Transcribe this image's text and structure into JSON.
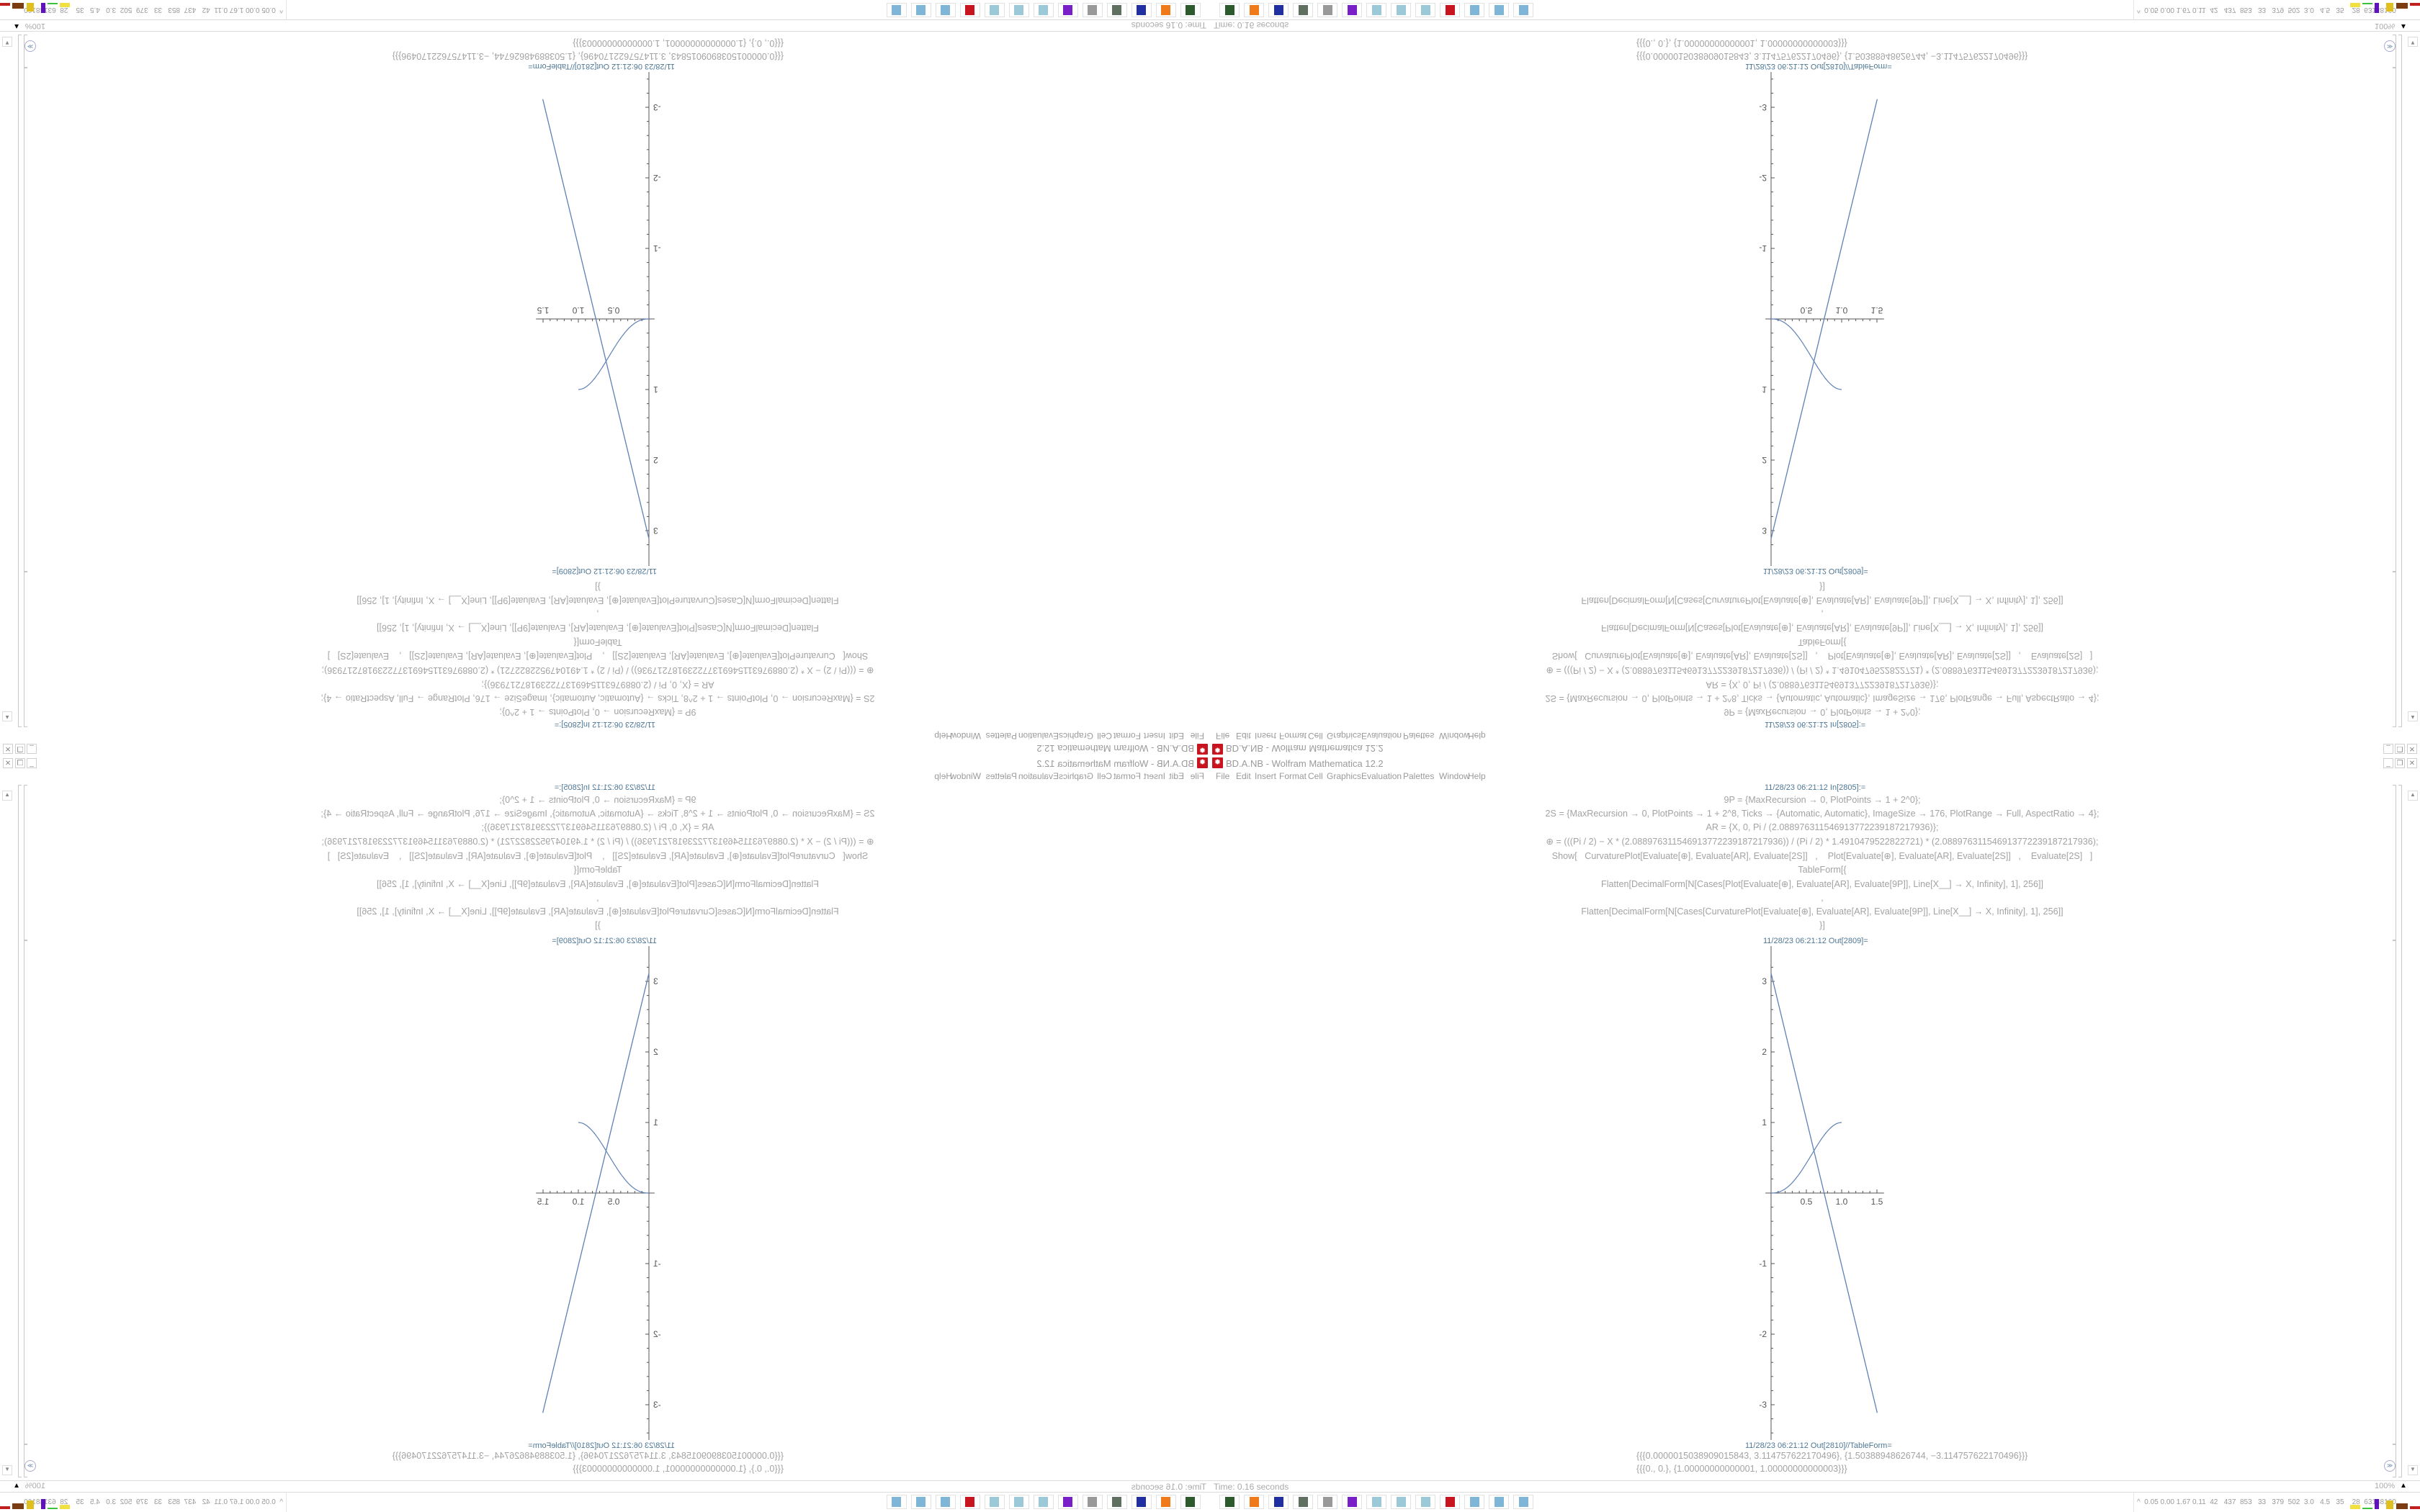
{
  "window": {
    "title": "BD.A.NB - Wolfram Mathematica 12.2",
    "app_icon": "mathematica-gear-icon",
    "controls": [
      "minimize",
      "restore",
      "close"
    ]
  },
  "menu": [
    "File",
    "Edit",
    "Insert",
    "Format",
    "Cell",
    "Graphics",
    "Evaluation",
    "Palettes",
    "Window",
    "Help"
  ],
  "input_cell": {
    "label": "11/28/23 06:21:12 In[2805]:=",
    "lines": [
      "9P = {MaxRecursion → 0, PlotPoints → 1 + 2^0};",
      "2S = {MaxRecursion → 0, PlotPoints → 1 + 2^8, Ticks → {Automatic, Automatic}, ImageSize → 176, PlotRange → Full, AspectRatio → 4};",
      "AR = {X, 0, Pi / (2.088976311546913772239187217936)};",
      "⊕ = (((Pi / 2) − X * (2.088976311546913772239187217936)) / (Pi / 2) * 1.4910479522822721) * (2.088976311546913772239187217936);",
      "Show[   CurvaturePlot[Evaluate[⊕], Evaluate[AR], Evaluate[2S]]   ,    Plot[Evaluate[⊕], Evaluate[AR], Evaluate[2S]]   ,    Evaluate[2S]   ]",
      "TableForm[{",
      "Flatten[DecimalForm[N[Cases[Plot[Evaluate[⊕], Evaluate[AR], Evaluate[9P]], Line[X__] → X, Infinity], 1], 256]]",
      ",",
      "Flatten[DecimalForm[N[Cases[CurvaturePlot[Evaluate[⊕], Evaluate[AR], Evaluate[9P]], Line[X__] → X, Infinity], 1], 256]]",
      "}]"
    ]
  },
  "plot_output": {
    "label": "11/28/23 06:21:12 Out[2809]="
  },
  "chart_data": {
    "type": "line",
    "x_ticks": [
      "0.5",
      "1.0",
      "1.5"
    ],
    "y_ticks": [
      "-3",
      "-2",
      "-1",
      "1",
      "2",
      "3"
    ],
    "xlim": [
      0,
      1.6
    ],
    "ylim": [
      -3.5,
      3.5
    ],
    "grid": false,
    "color": "#5e81b5",
    "series": [
      {
        "type": "line",
        "x": [
          1.5038909015843e-06,
          1.50388948626744
        ],
        "y": [
          3.114757622170496,
          -3.114757622170496
        ]
      },
      {
        "type": "curve",
        "x": [
          0,
          1.00000000000001
        ],
        "y": [
          0,
          1.00000000000003
        ]
      }
    ]
  },
  "table_output": {
    "label": "11/28/23 06:21:12 Out[2810]//TableForm=",
    "rows": [
      "{{{0.0000015038909015843, 3.114757622170496}, {1.50388948626744, −3.114757622170496}}}",
      "{{{0., 0.}, {1.00000000000001, 1.00000000000003}}}"
    ]
  },
  "status": {
    "time": "Time: 0.16 seconds",
    "zoom": "100%"
  },
  "taskbar": {
    "icons": [
      "terminal-icon",
      "firefox-icon",
      "floppy-64-icon",
      "monitor-icon",
      "speaker-icon",
      "purple-app-icon",
      "notepad-icon",
      "notepad-icon",
      "notepad-icon",
      "mathematica-icon",
      "calculator-icon",
      "calculator-icon",
      "calculator-icon"
    ],
    "icon_colors": [
      "#2d5a2d",
      "#f07a1a",
      "#2030a0",
      "#607060",
      "#999999",
      "#7a1fc8",
      "#9cc9d8",
      "#9cc9d8",
      "#9cc9d8",
      "#c8141e",
      "#7fb6d8",
      "#7fb6d8",
      "#7fb6d8"
    ],
    "tray_text": "^  0.05 0.00 1.67 0.11  42   437  853   33   379  502  3.0   4.5   35    28  63148160"
  }
}
